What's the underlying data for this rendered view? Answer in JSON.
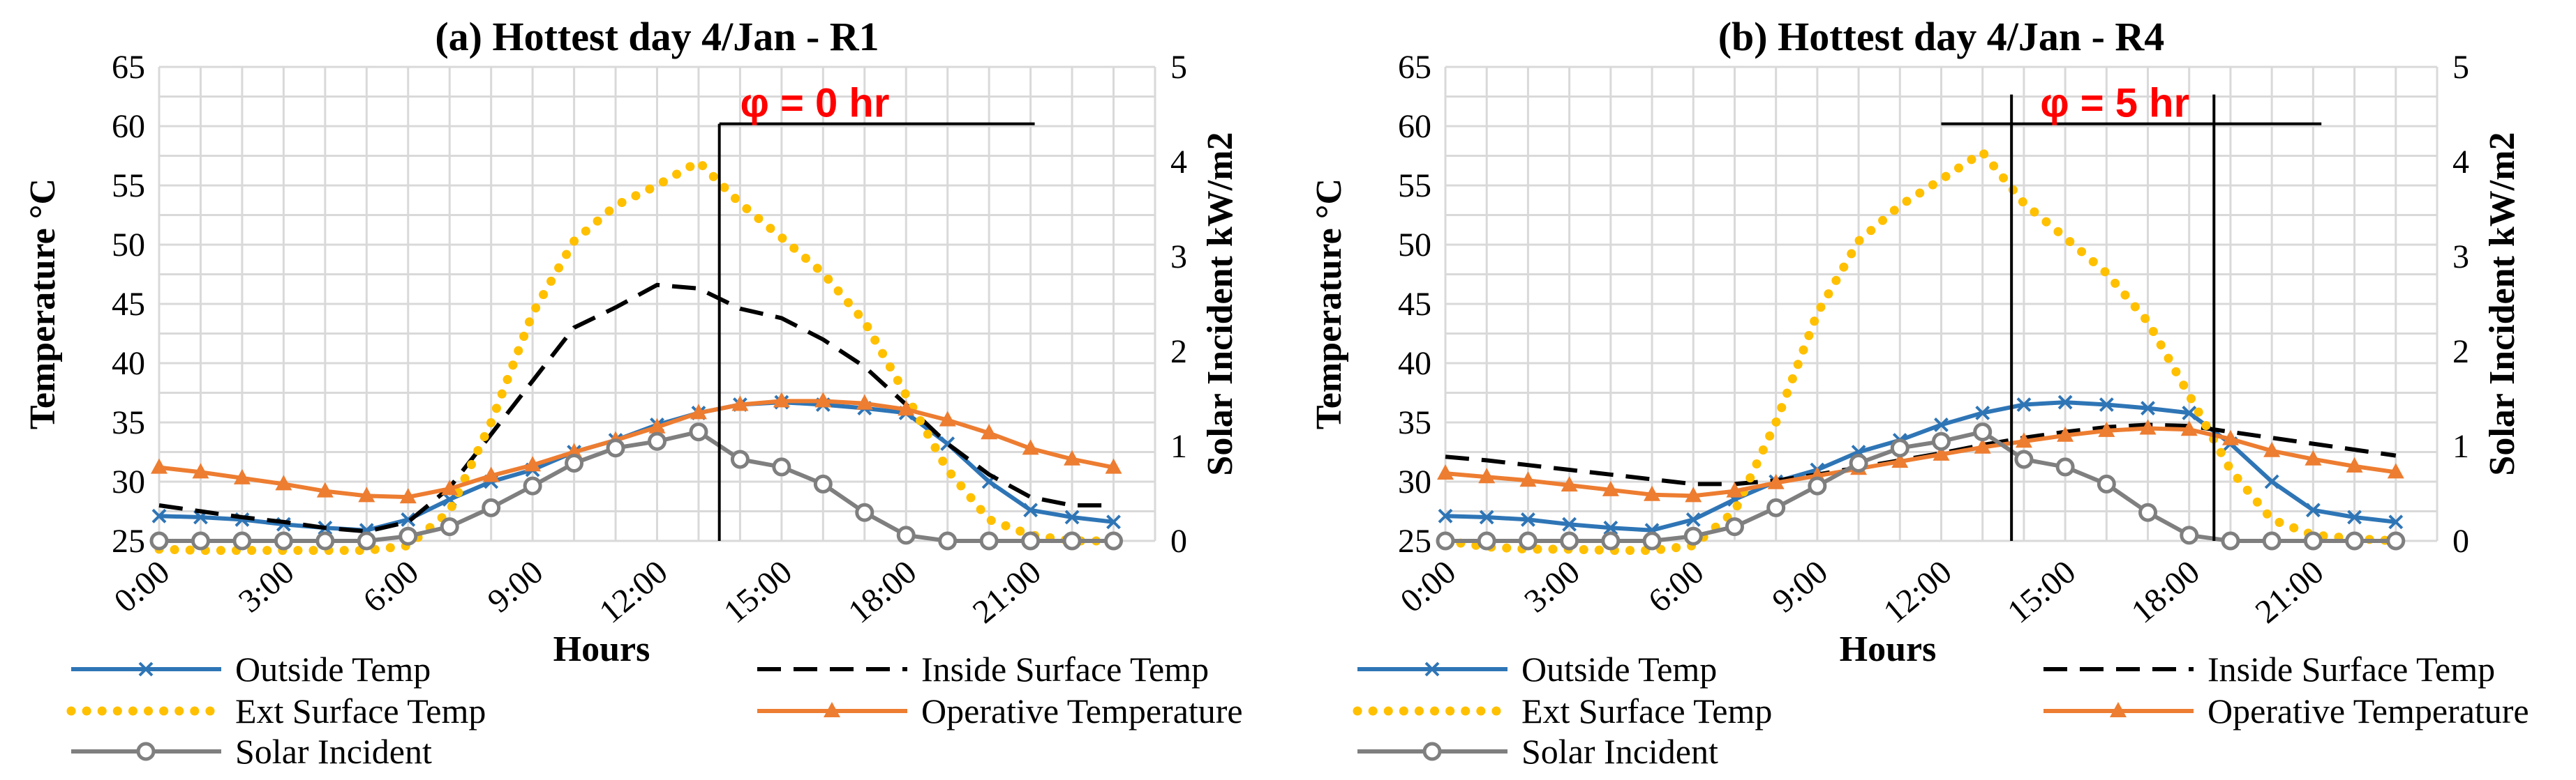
{
  "chart_data": [
    {
      "type": "line",
      "title": "(a) Hottest day 4/Jan - R1",
      "xlabel": "Hours",
      "ylabel": "Temperature °C",
      "y2label": "Solar Incident kW/m2",
      "ylim": [
        25,
        65
      ],
      "y2lim": [
        0,
        5
      ],
      "grid": true,
      "yticks": [
        "25",
        "30",
        "35",
        "40",
        "45",
        "50",
        "55",
        "60",
        "65"
      ],
      "y2ticks": [
        "0",
        "1",
        "2",
        "3",
        "4",
        "5"
      ],
      "xticks": [
        "0:00",
        "3:00",
        "6:00",
        "9:00",
        "12:00",
        "15:00",
        "18:00",
        "21:00"
      ],
      "phi_label": "φ = 0 hr",
      "phi_lines_hours": [
        13.5
      ],
      "phi_bar_hours": [
        13.5,
        21.1
      ],
      "phi_bar_temp": 60.2,
      "legend_position": "bottom",
      "series": [
        {
          "name": "Outside Temp",
          "color": "#2e75b6",
          "marker": "x",
          "axis": "left",
          "values": [
            27.1,
            27.0,
            26.8,
            26.4,
            26.1,
            25.9,
            26.8,
            28.5,
            30.0,
            31.0,
            32.5,
            33.5,
            34.8,
            35.8,
            36.5,
            36.7,
            36.5,
            36.2,
            35.8,
            33.2,
            30.0,
            27.6,
            27.0,
            26.6
          ]
        },
        {
          "name": "Inside Surface Temp",
          "color": "#000000",
          "dash": "dashed",
          "axis": "left",
          "values": [
            28.0,
            27.5,
            27.0,
            26.6,
            26.1,
            25.8,
            26.6,
            29.5,
            34.0,
            38.5,
            43.0,
            44.7,
            46.6,
            46.3,
            44.6,
            43.8,
            42.0,
            39.7,
            36.5,
            33.2,
            30.6,
            28.7,
            28.0,
            28.0
          ]
        },
        {
          "name": "Ext Surface Temp",
          "color": "#ffc000",
          "dash": "dotted",
          "axis": "left",
          "values": [
            24.3,
            24.2,
            24.2,
            24.2,
            24.2,
            24.2,
            24.6,
            27.5,
            35.0,
            44.2,
            50.3,
            53.3,
            55.0,
            57.0,
            53.5,
            50.6,
            47.6,
            43.5,
            37.3,
            31.0,
            26.8,
            25.5,
            25.0,
            25.0
          ]
        },
        {
          "name": "Operative Temperature",
          "color": "#ed7d31",
          "marker": "triangle",
          "axis": "left",
          "values": [
            31.2,
            30.8,
            30.3,
            29.8,
            29.2,
            28.8,
            28.7,
            29.4,
            30.5,
            31.4,
            32.5,
            33.5,
            34.6,
            35.8,
            36.5,
            36.8,
            36.8,
            36.6,
            36.1,
            35.2,
            34.1,
            32.8,
            31.9,
            31.2
          ]
        },
        {
          "name": "Solar Incident",
          "color": "#7f7f7f",
          "marker": "circle",
          "axis": "right",
          "values": [
            0.0,
            0.0,
            0.0,
            0.0,
            0.0,
            0.0,
            0.05,
            0.15,
            0.35,
            0.58,
            0.82,
            0.98,
            1.05,
            1.15,
            0.86,
            0.78,
            0.6,
            0.3,
            0.06,
            0.0,
            0.0,
            0.0,
            0.0,
            0.0
          ]
        }
      ]
    },
    {
      "type": "line",
      "title": "(b) Hottest day 4/Jan - R4",
      "xlabel": "Hours",
      "ylabel": "Temperature °C",
      "y2label": "Solar Incident kW/m2",
      "ylim": [
        25,
        65
      ],
      "y2lim": [
        0,
        5
      ],
      "grid": true,
      "yticks": [
        "25",
        "30",
        "35",
        "40",
        "45",
        "50",
        "55",
        "60",
        "65"
      ],
      "y2ticks": [
        "0",
        "1",
        "2",
        "3",
        "4",
        "5"
      ],
      "xticks": [
        "0:00",
        "3:00",
        "6:00",
        "9:00",
        "12:00",
        "15:00",
        "18:00",
        "21:00"
      ],
      "phi_label": "φ = 5 hr",
      "phi_lines_hours": [
        13.7,
        18.6
      ],
      "phi_bar_hours": [
        12.0,
        21.2
      ],
      "phi_bar_temp": 60.2,
      "legend_position": "bottom",
      "series": [
        {
          "name": "Outside Temp",
          "color": "#2e75b6",
          "marker": "x",
          "axis": "left",
          "values": [
            27.1,
            27.0,
            26.8,
            26.4,
            26.1,
            25.9,
            26.8,
            28.5,
            30.0,
            31.0,
            32.5,
            33.5,
            34.8,
            35.8,
            36.5,
            36.7,
            36.5,
            36.2,
            35.8,
            33.2,
            30.0,
            27.6,
            27.0,
            26.6
          ]
        },
        {
          "name": "Inside Surface Temp",
          "color": "#000000",
          "dash": "dashed",
          "axis": "left",
          "values": [
            32.1,
            31.8,
            31.4,
            31.0,
            30.6,
            30.2,
            29.8,
            29.8,
            30.1,
            30.6,
            31.2,
            31.8,
            32.4,
            33.1,
            33.7,
            34.2,
            34.6,
            34.8,
            34.7,
            34.2,
            33.7,
            33.2,
            32.7,
            32.2
          ]
        },
        {
          "name": "Ext Surface Temp",
          "color": "#ffc000",
          "dash": "dotted",
          "axis": "left",
          "values": [
            25.0,
            24.5,
            24.3,
            24.3,
            24.2,
            24.2,
            24.6,
            27.5,
            35.0,
            44.2,
            50.3,
            53.3,
            55.5,
            57.8,
            53.5,
            50.6,
            47.6,
            43.5,
            37.3,
            31.0,
            26.8,
            25.5,
            25.2,
            25.0
          ]
        },
        {
          "name": "Operative Temperature",
          "color": "#ed7d31",
          "marker": "triangle",
          "axis": "left",
          "values": [
            30.7,
            30.4,
            30.1,
            29.7,
            29.3,
            28.9,
            28.8,
            29.2,
            29.9,
            30.5,
            31.1,
            31.7,
            32.3,
            32.9,
            33.4,
            33.9,
            34.3,
            34.5,
            34.4,
            33.6,
            32.6,
            31.9,
            31.3,
            30.8
          ]
        },
        {
          "name": "Solar Incident",
          "color": "#7f7f7f",
          "marker": "circle",
          "axis": "right",
          "values": [
            0.0,
            0.0,
            0.0,
            0.0,
            0.0,
            0.0,
            0.05,
            0.15,
            0.35,
            0.58,
            0.82,
            0.98,
            1.05,
            1.15,
            0.86,
            0.78,
            0.6,
            0.3,
            0.06,
            0.0,
            0.0,
            0.0,
            0.0,
            0.0
          ]
        }
      ]
    }
  ]
}
